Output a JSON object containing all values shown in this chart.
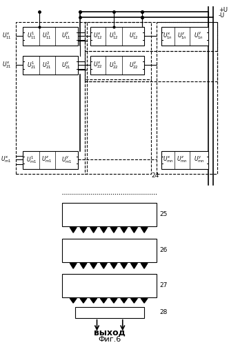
{
  "fig_width": 3.32,
  "fig_height": 5.0,
  "dpi": 100,
  "bg_color": "#ffffff",
  "plus_u": "+U",
  "minus_u": "-U",
  "title_text": "Фиг.6",
  "output_text": "выход",
  "labels": [
    "24",
    "25",
    "26",
    "27",
    "28"
  ],
  "box_labels_11": [
    "$U^x_{11}$",
    "$U^1_{11}$",
    "$U^2_{11}$",
    "$U^y_{11}$"
  ],
  "box_labels_21": [
    "$U^x_{21}$",
    "$U^1_{21}$",
    "$U^2_{21}$",
    "$U^y_{21}$"
  ],
  "box_labels_m1": [
    "$U^x_{m1}$",
    "$U^1_{m1}$",
    "$U^z_{m1}$",
    "$U^y_{m1}$"
  ],
  "box_labels_12": [
    "$U^x_{12}$",
    "$U^1_{12}$",
    "$U^c_{12}$"
  ],
  "box_labels_22": [
    "$U^x_{22}$",
    "$U^1_{22}$",
    "$U^y_{22}$"
  ],
  "box_labels_1n": [
    "$U^x_{1n}$",
    "$U^z_{1n}$",
    "$U^y_{1n}$"
  ],
  "box_labels_mn": [
    "$U^x_{mn}$",
    "$U^z_{mn}$",
    "$U^y_{mn}$"
  ],
  "left_labels": [
    "$U^x_{11}$",
    "$U^x_{21}$",
    "$U^x_{m1}$"
  ]
}
